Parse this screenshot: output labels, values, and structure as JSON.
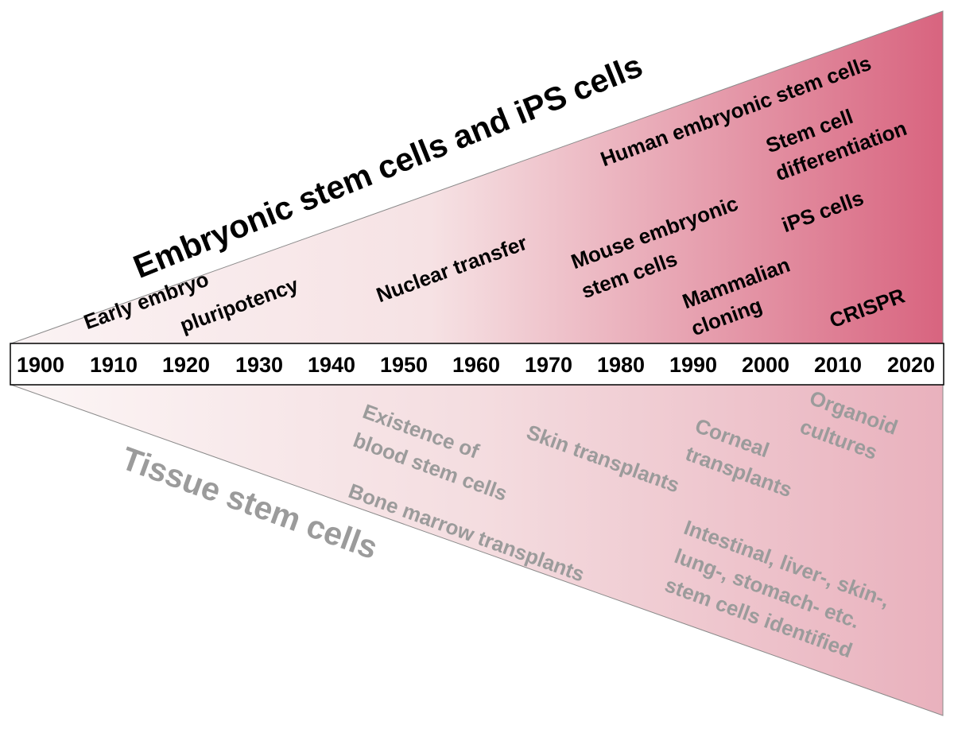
{
  "colors": {
    "wedge_light": "#fbf3f4",
    "wedge_dark": "#d8647f",
    "top_text": "#000000",
    "bottom_text": "#9b9b9b"
  },
  "upper_heading": "Embryonic stem cells and iPS cells",
  "lower_heading": "Tissue stem cells",
  "timeline": {
    "years": [
      "1900",
      "1910",
      "1920",
      "1930",
      "1940",
      "1950",
      "1960",
      "1970",
      "1980",
      "1990",
      "2000",
      "2010",
      "2020"
    ]
  },
  "upper_events": {
    "early_embryo": "Early embryo",
    "pluripotency": "pluripotency",
    "nuclear_transfer": "Nuclear transfer",
    "mouse_es_line1": "Mouse embryonic",
    "mouse_es_line2": "stem cells",
    "human_es": "Human embryonic stem cells",
    "stem_cell_diff_line1": "Stem cell",
    "stem_cell_diff_line2": "differentiation",
    "ips_cells": "iPS cells",
    "mammalian_cloning_line1": "Mammalian",
    "mammalian_cloning_line2": "cloning",
    "crispr": "CRISPR"
  },
  "lower_events": {
    "blood_line1": "Existence of",
    "blood_line2": "blood stem cells",
    "skin_transplants": "Skin transplants",
    "bone_marrow": "Bone marrow transplants",
    "corneal_line1": "Corneal",
    "corneal_line2": "transplants",
    "organoid_line1": "Organoid",
    "organoid_line2": "cultures",
    "tissue_line1": "Intestinal, liver-, skin-,",
    "tissue_line2": "lung-, stomach- etc.",
    "tissue_line3": "stem cells identified"
  }
}
